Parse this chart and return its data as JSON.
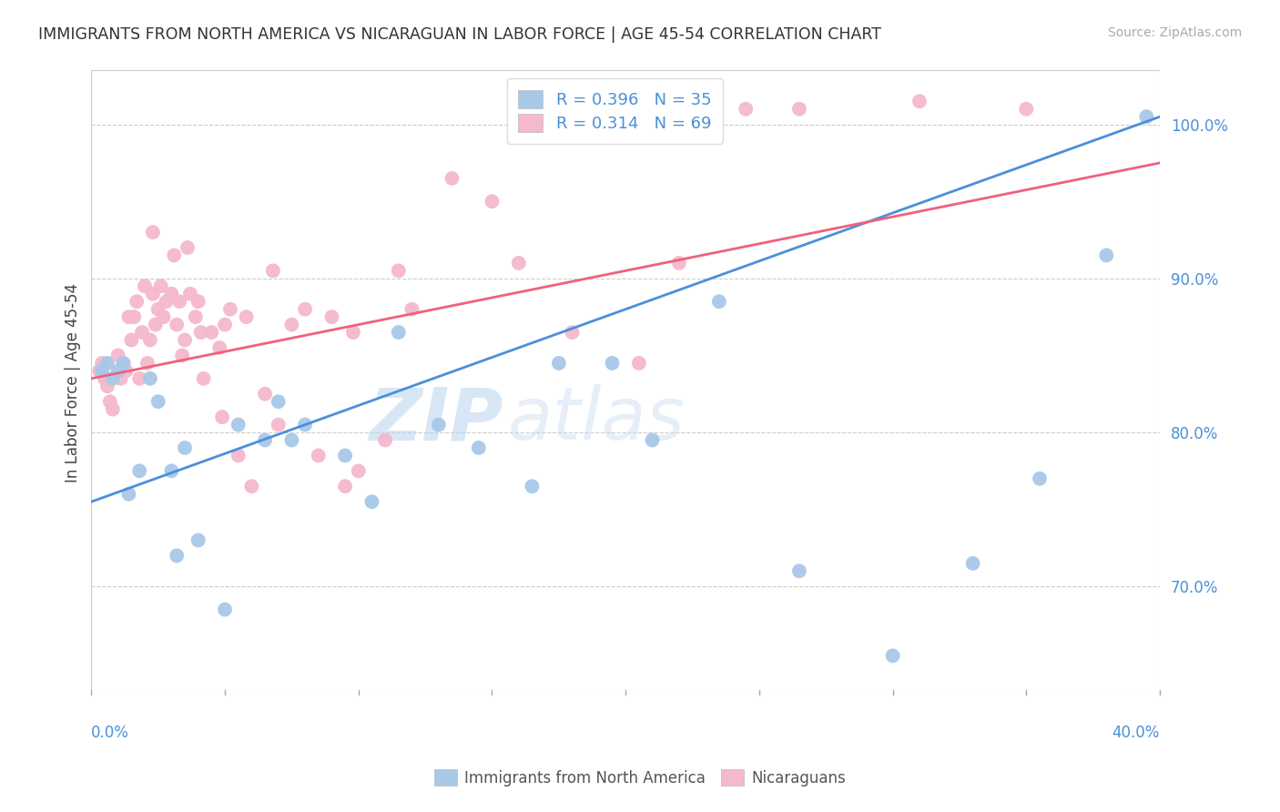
{
  "title": "IMMIGRANTS FROM NORTH AMERICA VS NICARAGUAN IN LABOR FORCE | AGE 45-54 CORRELATION CHART",
  "source": "Source: ZipAtlas.com",
  "ylabel": "In Labor Force | Age 45-54",
  "ytick_positions": [
    70.0,
    80.0,
    90.0,
    100.0
  ],
  "xmin": 0.0,
  "xmax": 40.0,
  "ymin": 63.0,
  "ymax": 103.5,
  "blue_R": 0.396,
  "blue_N": 35,
  "pink_R": 0.314,
  "pink_N": 69,
  "blue_scatter_color": "#a8c8e8",
  "pink_scatter_color": "#f5b8cc",
  "blue_line_color": "#4a90d9",
  "pink_line_color": "#f06080",
  "blue_label": "Immigrants from North America",
  "pink_label": "Nicaraguans",
  "watermark_zip": "ZIP",
  "watermark_atlas": "atlas",
  "blue_x": [
    0.4,
    0.6,
    0.8,
    1.0,
    1.2,
    1.4,
    1.8,
    2.2,
    2.5,
    3.0,
    3.5,
    4.0,
    5.0,
    5.5,
    6.5,
    7.0,
    7.5,
    8.0,
    9.5,
    10.5,
    11.5,
    13.0,
    14.5,
    16.5,
    17.5,
    19.5,
    21.0,
    23.5,
    26.5,
    30.0,
    33.0,
    35.5,
    38.0,
    39.5,
    3.2
  ],
  "blue_y": [
    84.0,
    84.5,
    83.5,
    84.0,
    84.5,
    76.0,
    77.5,
    83.5,
    82.0,
    77.5,
    79.0,
    73.0,
    68.5,
    80.5,
    79.5,
    82.0,
    79.5,
    80.5,
    78.5,
    75.5,
    86.5,
    80.5,
    79.0,
    76.5,
    84.5,
    84.5,
    79.5,
    88.5,
    71.0,
    65.5,
    71.5,
    77.0,
    91.5,
    100.5,
    72.0
  ],
  "pink_x": [
    0.3,
    0.4,
    0.5,
    0.6,
    0.7,
    0.8,
    1.0,
    1.1,
    1.2,
    1.3,
    1.4,
    1.5,
    1.6,
    1.7,
    1.8,
    1.9,
    2.0,
    2.1,
    2.2,
    2.3,
    2.4,
    2.5,
    2.6,
    2.7,
    2.8,
    3.0,
    3.1,
    3.2,
    3.3,
    3.4,
    3.5,
    3.7,
    3.9,
    4.0,
    4.2,
    4.5,
    4.8,
    5.0,
    5.2,
    5.5,
    5.8,
    6.0,
    6.5,
    7.0,
    7.5,
    8.0,
    8.5,
    9.0,
    9.5,
    10.0,
    11.0,
    11.5,
    12.0,
    13.5,
    15.0,
    16.0,
    18.0,
    20.5,
    22.0,
    24.5,
    26.5,
    31.0,
    35.0,
    2.3,
    3.6,
    4.1,
    4.9,
    6.8,
    9.8
  ],
  "pink_y": [
    84.0,
    84.5,
    83.5,
    83.0,
    82.0,
    81.5,
    85.0,
    83.5,
    84.5,
    84.0,
    87.5,
    86.0,
    87.5,
    88.5,
    83.5,
    86.5,
    89.5,
    84.5,
    86.0,
    89.0,
    87.0,
    88.0,
    89.5,
    87.5,
    88.5,
    89.0,
    91.5,
    87.0,
    88.5,
    85.0,
    86.0,
    89.0,
    87.5,
    88.5,
    83.5,
    86.5,
    85.5,
    87.0,
    88.0,
    78.5,
    87.5,
    76.5,
    82.5,
    80.5,
    87.0,
    88.0,
    78.5,
    87.5,
    76.5,
    77.5,
    79.5,
    90.5,
    88.0,
    96.5,
    95.0,
    91.0,
    86.5,
    84.5,
    91.0,
    101.0,
    101.0,
    101.5,
    101.0,
    93.0,
    92.0,
    86.5,
    81.0,
    90.5,
    86.5
  ]
}
